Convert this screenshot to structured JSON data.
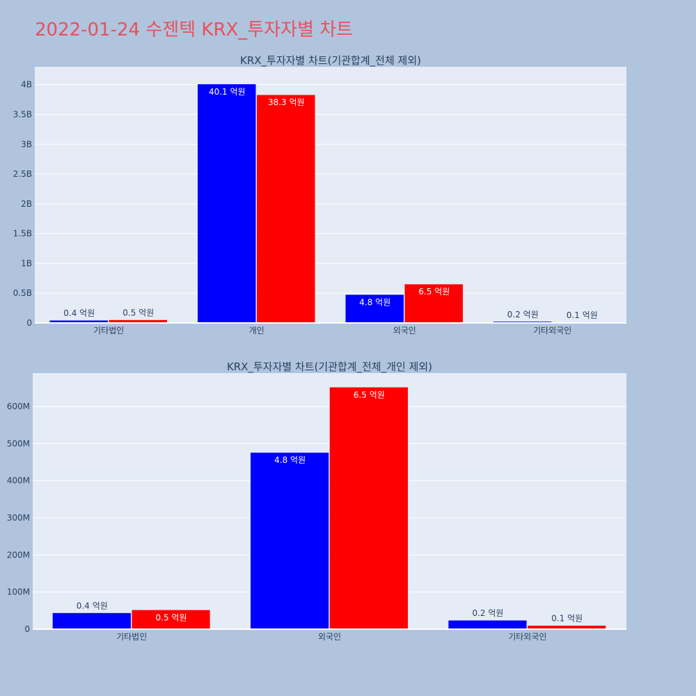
{
  "page": {
    "title": "2022-01-24 수젠텍 KRX_투자자별 차트"
  },
  "colors": {
    "series_a": "#0000ff",
    "series_b": "#ff0000",
    "plot_bg": "#e5ecf6",
    "page_bg": "#b0c4de"
  },
  "chart_data": [
    {
      "type": "bar",
      "title": "KRX_투자자별 차트(기관합계_전체 제외)",
      "categories": [
        "기타법인",
        "개인",
        "외국인",
        "기타외국인"
      ],
      "ylim": [
        0,
        4300000000
      ],
      "yticks": [
        {
          "value": 0,
          "label": "0"
        },
        {
          "value": 500000000,
          "label": "0.5B"
        },
        {
          "value": 1000000000,
          "label": "1B"
        },
        {
          "value": 1500000000,
          "label": "1.5B"
        },
        {
          "value": 2000000000,
          "label": "2B"
        },
        {
          "value": 2500000000,
          "label": "2.5B"
        },
        {
          "value": 3000000000,
          "label": "3B"
        },
        {
          "value": 3500000000,
          "label": "3.5B"
        },
        {
          "value": 4000000000,
          "label": "4B"
        }
      ],
      "grid": true,
      "series": [
        {
          "color": "#0000ff",
          "values": [
            44000000,
            4010000000,
            476000000,
            24000000
          ],
          "labels": [
            "0.4 억원",
            "40.1 억원",
            "4.8 억원",
            "0.2 억원"
          ]
        },
        {
          "color": "#ff0000",
          "values": [
            52000000,
            3830000000,
            652000000,
            10000000
          ],
          "labels": [
            "0.5 억원",
            "38.3 억원",
            "6.5 억원",
            "0.1 억원"
          ]
        }
      ]
    },
    {
      "type": "bar",
      "title": "KRX_투자자별 차트(기관합계_전체_개인 제외)",
      "categories": [
        "기타법인",
        "외국인",
        "기타외국인"
      ],
      "ylim": [
        0,
        690000000
      ],
      "yticks": [
        {
          "value": 0,
          "label": "0"
        },
        {
          "value": 100000000,
          "label": "100M"
        },
        {
          "value": 200000000,
          "label": "200M"
        },
        {
          "value": 300000000,
          "label": "300M"
        },
        {
          "value": 400000000,
          "label": "400M"
        },
        {
          "value": 500000000,
          "label": "500M"
        },
        {
          "value": 600000000,
          "label": "600M"
        }
      ],
      "grid": true,
      "series": [
        {
          "color": "#0000ff",
          "values": [
            44000000,
            476000000,
            24000000
          ],
          "labels": [
            "0.4 억원",
            "4.8 억원",
            "0.2 억원"
          ]
        },
        {
          "color": "#ff0000",
          "values": [
            52000000,
            652000000,
            10000000
          ],
          "labels": [
            "0.5 억원",
            "6.5 억원",
            "0.1 억원"
          ]
        }
      ]
    }
  ]
}
